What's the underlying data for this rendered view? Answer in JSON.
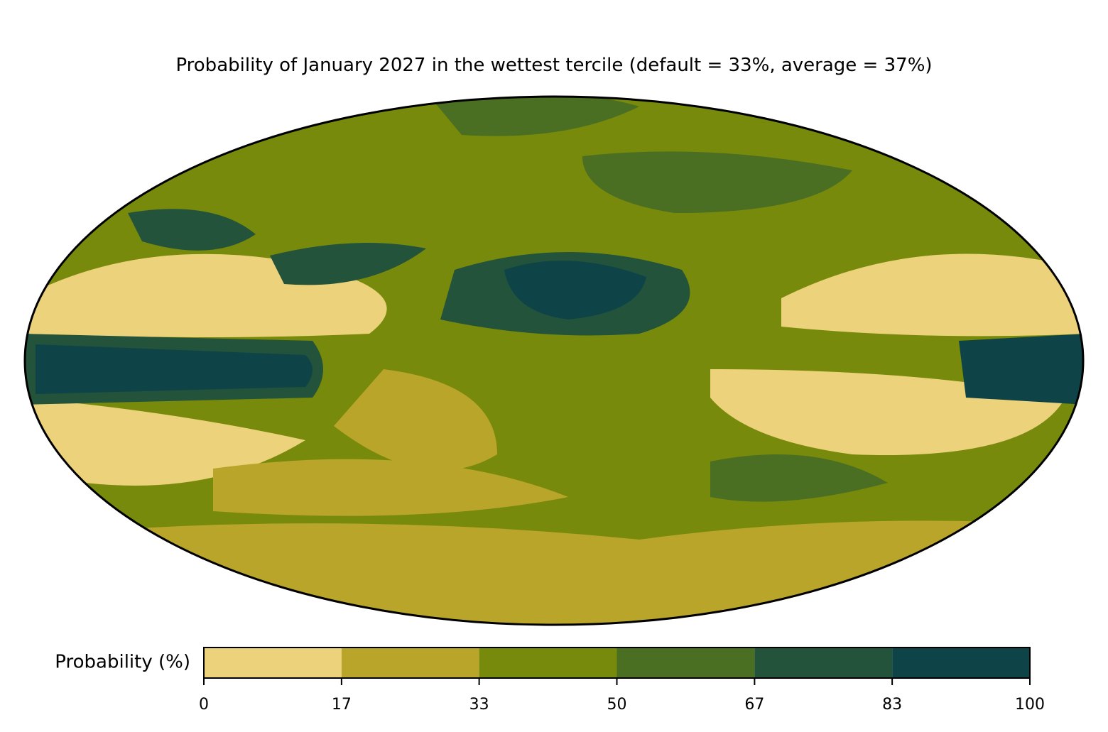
{
  "chart_data": {
    "type": "map",
    "title": "Probability of January 2027 in the wettest tercile (default = 33%, average = 37%)",
    "colorbar": {
      "label": "Probability (%)",
      "lim": [
        0,
        100
      ],
      "colors": [
        "#ecd27a",
        "#b8a52a",
        "#778a0c",
        "#4a6e22",
        "#23533a",
        "#0e4448"
      ],
      "ticks": [
        0,
        {
          "value": 16.67,
          "label": "17"
        },
        {
          "value": 33.33,
          "label": "33"
        },
        50,
        {
          "value": 66.67,
          "label": "67"
        },
        {
          "value": 83.33,
          "label": "83"
        },
        100
      ]
    }
  }
}
